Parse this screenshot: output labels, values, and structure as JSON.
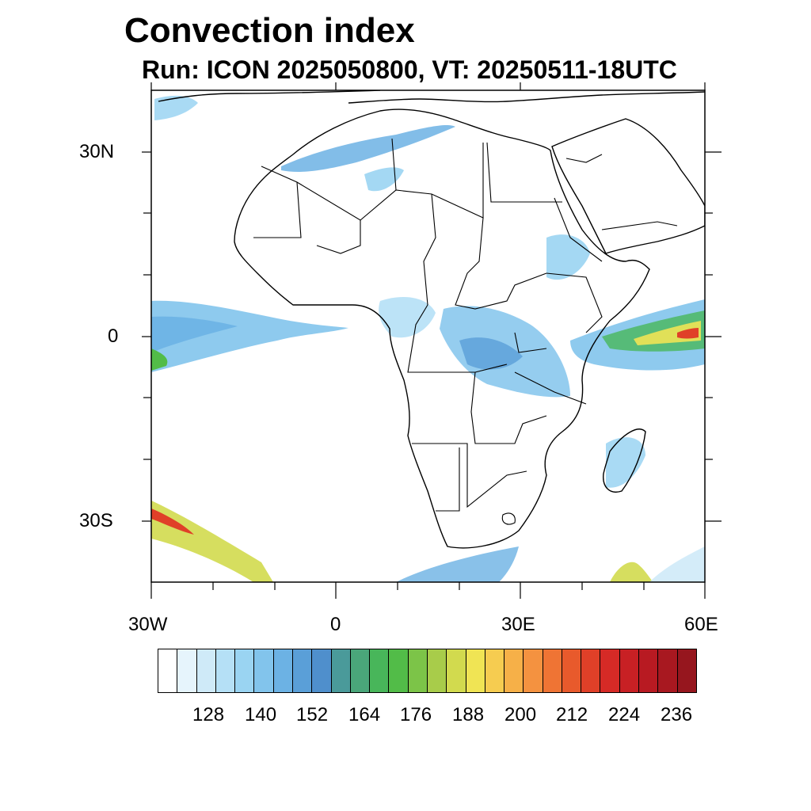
{
  "title": "Convection index",
  "subtitle": "Run: ICON 2025050800,  VT: 20250511-18UTC",
  "map": {
    "type": "contour-map",
    "region": "Africa",
    "projection": "cylindrical equidistant",
    "lon_range": [
      -30,
      60
    ],
    "lat_range": [
      -40,
      40
    ],
    "lat_ticks": [
      {
        "label": "30N"
      },
      {
        "label": "0"
      },
      {
        "label": "30S"
      }
    ],
    "lon_ticks": [
      {
        "label": "30W"
      },
      {
        "label": "0"
      },
      {
        "label": "30E"
      },
      {
        "label": "60E"
      }
    ]
  },
  "colorbar": {
    "labels": [
      "128",
      "140",
      "152",
      "164",
      "176",
      "188",
      "200",
      "212",
      "224",
      "236"
    ],
    "colors": [
      "#ffffff",
      "#e6f4fc",
      "#cfeaf8",
      "#b5e0f6",
      "#9ad4f2",
      "#82c4ec",
      "#6cb2e4",
      "#5a9fd8",
      "#4f8fcc",
      "#4a9a9a",
      "#4aa67a",
      "#48b65a",
      "#52bc48",
      "#7cc448",
      "#a8cc4a",
      "#d2da4e",
      "#f0e454",
      "#f6cc50",
      "#f6b048",
      "#f49240",
      "#ef7434",
      "#e85a2c",
      "#e04028",
      "#d62a26",
      "#c82024",
      "#b81a22",
      "#a81820",
      "#96161e"
    ]
  }
}
